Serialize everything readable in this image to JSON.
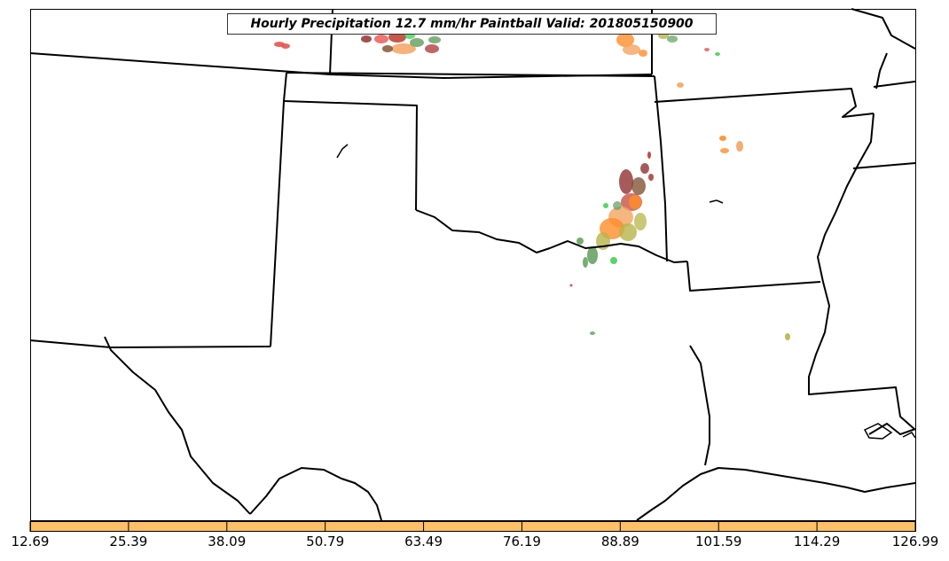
{
  "map": {
    "title": "Hourly Precipitation 12.7 mm/hr Paintball Valid: 201805150900"
  },
  "colorbar": {
    "color": "#ffbf66",
    "tick_labels": [
      "12.69",
      "25.39",
      "38.09",
      "50.79",
      "63.49",
      "76.19",
      "88.89",
      "101.59",
      "114.29",
      "126.99"
    ]
  },
  "paintball_colors": [
    "#e8524f",
    "#c0392b",
    "#8b2323",
    "#ff8c2a",
    "#f4a460",
    "#b8b44a",
    "#5f9e5a",
    "#2ecc40",
    "#7a4a2a"
  ]
}
